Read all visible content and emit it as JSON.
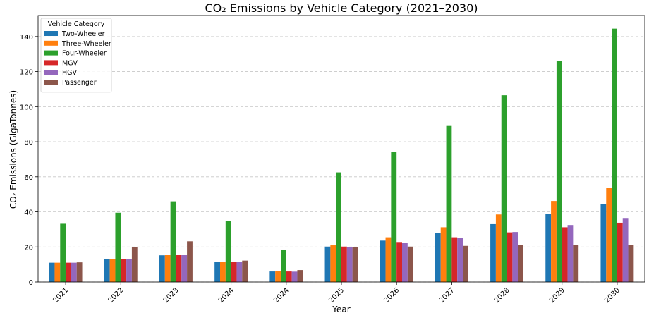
{
  "chart_data": {
    "type": "bar",
    "title": "CO₂ Emissions by Vehicle Category (2021–2030)",
    "xlabel": "Year",
    "ylabel": "CO₂ Emissions (GigaTonnes)",
    "categories": [
      "2021",
      "2022",
      "2023",
      "2024",
      "2024",
      "2025",
      "2026",
      "2027",
      "2028",
      "2029",
      "2030"
    ],
    "ylim": [
      0,
      152
    ],
    "yticks": [
      0,
      20,
      40,
      60,
      80,
      100,
      120,
      140
    ],
    "grid": "y-dashed",
    "legend_title": "Vehicle Category",
    "legend_position": "top-left",
    "series": [
      {
        "name": "Two-Wheeler",
        "color": "#1f77b4",
        "values": [
          11,
          13.2,
          15.2,
          11.5,
          6,
          20.2,
          23.6,
          27.8,
          33,
          38.7,
          44.5
        ]
      },
      {
        "name": "Three-Wheeler",
        "color": "#ff7f0e",
        "values": [
          11,
          13.2,
          15.3,
          11.5,
          6.2,
          20.9,
          25.5,
          31.2,
          38.5,
          46.2,
          53.5
        ]
      },
      {
        "name": "Four-Wheeler",
        "color": "#2ca02c",
        "values": [
          33.2,
          39.5,
          46,
          34.6,
          18.5,
          62.5,
          74.3,
          89,
          106.5,
          126,
          144.5
        ]
      },
      {
        "name": "MGV",
        "color": "#d62728",
        "values": [
          11,
          13.2,
          15.5,
          11.5,
          6,
          20.2,
          22.8,
          25.5,
          28.3,
          31.2,
          33.8
        ]
      },
      {
        "name": "HGV",
        "color": "#9467bd",
        "values": [
          11,
          13.2,
          15.5,
          11.5,
          5.9,
          19.8,
          22.3,
          25.2,
          28.5,
          32.5,
          36.5
        ]
      },
      {
        "name": "Passenger",
        "color": "#8c564b",
        "values": [
          11.2,
          19.8,
          23.2,
          12.2,
          6.8,
          20,
          20.2,
          20.6,
          21,
          21.3,
          21.3
        ]
      }
    ]
  }
}
